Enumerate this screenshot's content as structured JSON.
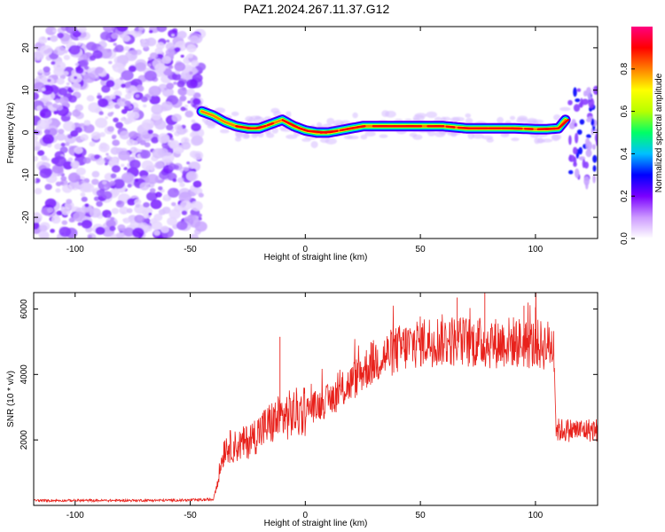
{
  "title": "PAZ1.2024.267.11.37.G12",
  "chart_data": [
    {
      "type": "heatmap",
      "xlabel": "Height of straight line (km)",
      "ylabel": "Frequency (Hz)",
      "xlim": [
        -118,
        127
      ],
      "ylim": [
        -25,
        25
      ],
      "xticks": [
        -100,
        -50,
        0,
        50,
        100
      ],
      "yticks": [
        -20,
        -10,
        0,
        10,
        20
      ],
      "colorbar": {
        "label": "Normalized spectral amplitude",
        "range": [
          0,
          1
        ],
        "ticks": [
          "0.0",
          "0.2",
          "0.4",
          "0.6",
          "0.8"
        ],
        "colors": [
          "#ffffff",
          "#cc99ff",
          "#7a00ff",
          "#0000ff",
          "#00c0ff",
          "#00ff66",
          "#b8ff00",
          "#ffff00",
          "#ff8000",
          "#ff0000",
          "#ff0080"
        ]
      },
      "noise_region_x": [
        -118,
        -45
      ],
      "ridge": {
        "x": [
          -45,
          -40,
          -35,
          -30,
          -25,
          -20,
          -15,
          -10,
          -5,
          0,
          5,
          10,
          15,
          20,
          25,
          30,
          40,
          50,
          60,
          70,
          80,
          90,
          100,
          105,
          110,
          113
        ],
        "y": [
          5,
          4,
          2.5,
          1.5,
          1,
          1,
          2,
          3,
          1.5,
          0.5,
          0,
          0,
          0.5,
          1,
          1.5,
          1.5,
          1.5,
          1.5,
          1.5,
          1,
          1,
          1,
          0.8,
          0.8,
          1,
          3
        ]
      },
      "tail_region_x": [
        115,
        127
      ]
    },
    {
      "type": "line",
      "xlabel": "Height of straight line (km)",
      "ylabel": "SNR (10 * v/v)",
      "xlim": [
        -118,
        127
      ],
      "ylim": [
        0,
        6500
      ],
      "xticks": [
        -100,
        -50,
        0,
        50,
        100
      ],
      "yticks": [
        2000,
        4000,
        6000
      ],
      "color": "#e8211b",
      "envelope": {
        "x": [
          -118,
          -80,
          -50,
          -40,
          -38,
          -35,
          -30,
          -25,
          -20,
          -15,
          -10,
          -5,
          0,
          5,
          10,
          15,
          20,
          25,
          30,
          40,
          50,
          60,
          70,
          80,
          90,
          100,
          108,
          109,
          110,
          127
        ],
        "y": [
          150,
          150,
          160,
          180,
          800,
          1800,
          1800,
          1950,
          2250,
          2500,
          2700,
          2800,
          2900,
          3050,
          3200,
          3450,
          3750,
          4100,
          4400,
          4750,
          5000,
          5050,
          5000,
          4950,
          5000,
          4900,
          4900,
          2300,
          2300,
          2300
        ]
      },
      "spikes": [
        {
          "x": -11,
          "y": 5150
        },
        {
          "x": 66,
          "y": 6350
        },
        {
          "x": 78,
          "y": 6500
        },
        {
          "x": 95,
          "y": 6100
        },
        {
          "x": 100,
          "y": 6050
        }
      ]
    }
  ]
}
